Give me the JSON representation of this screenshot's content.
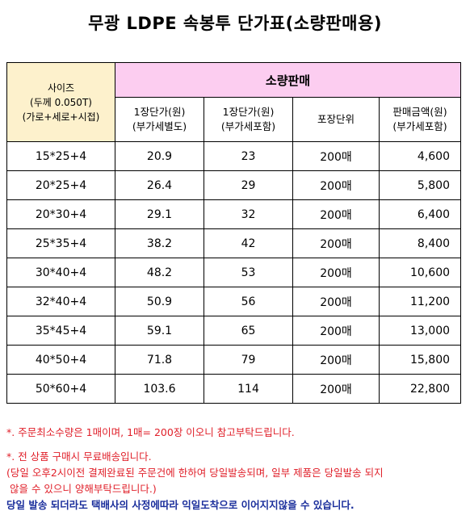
{
  "title": "무광 LDPE 속봉투 단가표(소량판매용)",
  "table": {
    "size_header": [
      "사이즈",
      "(두께 0.050T)",
      "(가로+세로+시접)"
    ],
    "group_header": "소량판매",
    "columns": [
      [
        "1장단가(원)",
        "(부가세별도)"
      ],
      [
        "1장단가(원)",
        "(부가세포함)"
      ],
      [
        "포장단위"
      ],
      [
        "판매금액(원)",
        "(부가세포함)"
      ]
    ],
    "rows": [
      {
        "size": "15*25+4",
        "price_ex": "20.9",
        "price_inc": "23",
        "unit": "200매",
        "total": "4,600"
      },
      {
        "size": "20*25+4",
        "price_ex": "26.4",
        "price_inc": "29",
        "unit": "200매",
        "total": "5,800"
      },
      {
        "size": "20*30+4",
        "price_ex": "29.1",
        "price_inc": "32",
        "unit": "200매",
        "total": "6,400"
      },
      {
        "size": "25*35+4",
        "price_ex": "38.2",
        "price_inc": "42",
        "unit": "200매",
        "total": "8,400"
      },
      {
        "size": "30*40+4",
        "price_ex": "48.2",
        "price_inc": "53",
        "unit": "200매",
        "total": "10,600"
      },
      {
        "size": "32*40+4",
        "price_ex": "50.9",
        "price_inc": "56",
        "unit": "200매",
        "total": "11,200"
      },
      {
        "size": "35*45+4",
        "price_ex": "59.1",
        "price_inc": "65",
        "unit": "200매",
        "total": "13,000"
      },
      {
        "size": "40*50+4",
        "price_ex": "71.8",
        "price_inc": "79",
        "unit": "200매",
        "total": "15,800"
      },
      {
        "size": "50*60+4",
        "price_ex": "103.6",
        "price_inc": "114",
        "unit": "200매",
        "total": "22,800"
      }
    ]
  },
  "notes": {
    "line1": "*. 주문최소수량은 1매이며, 1매= 200장 이오니 참고부탁드립니다.",
    "line2": "*. 전 상품 구매시 무료배송입니다.",
    "line3": "(당일 오후2시이전 결제완료된 주문건에 한하여 당일발송되며, 일부 제품은 당일발송 되지",
    "line4": " 않을 수 있으니 양해부탁드립니다.)",
    "line5": "당일 발송 되더라도 택배사의 사정에따라 익일도착으로 이어지지않을 수 있습니다."
  },
  "colors": {
    "size_header_bg": "#fdf1cc",
    "group_header_bg": "#fccdf0",
    "note_red": "#e0202a",
    "note_blue": "#1b2f9c"
  }
}
